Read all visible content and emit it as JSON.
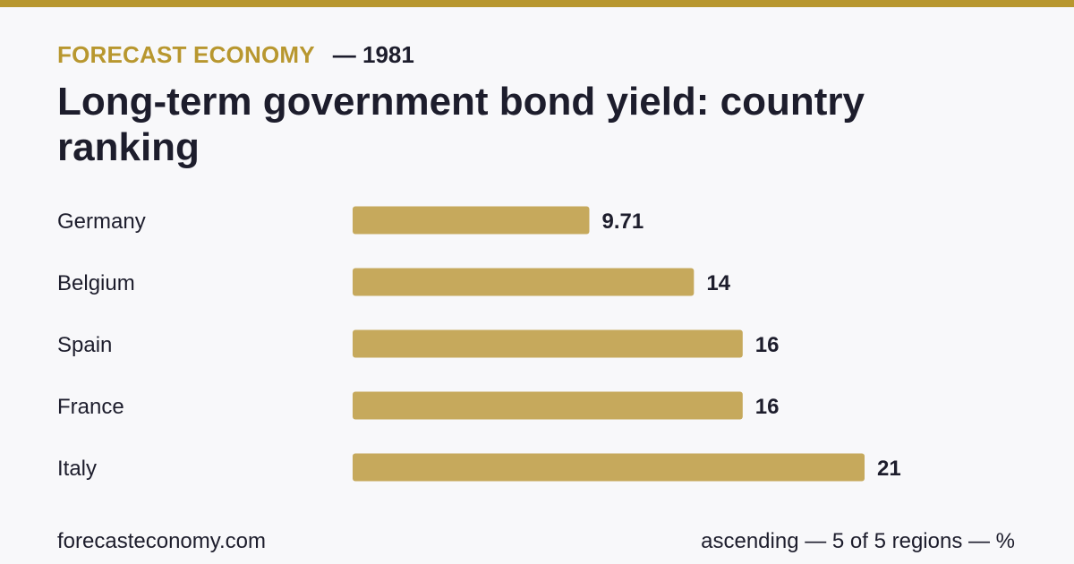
{
  "header": {
    "brand": "FORECAST ECONOMY",
    "year_text": "— 1981",
    "title": "Long-term government bond yield: country ranking"
  },
  "colors": {
    "accent": "#b8972f",
    "bar": "#c6a95c",
    "text": "#1d1d2c",
    "background": "#f8f8fa"
  },
  "chart_data": {
    "type": "bar",
    "orientation": "horizontal",
    "categories": [
      "Germany",
      "Belgium",
      "Spain",
      "France",
      "Italy"
    ],
    "values": [
      9.71,
      14,
      16,
      16,
      21
    ],
    "value_labels": [
      "9.71",
      "14",
      "16",
      "16",
      "21"
    ],
    "xlim": [
      0,
      21
    ],
    "grid": false,
    "legend": "none"
  },
  "footer": {
    "source": "forecasteconomy.com",
    "note": "ascending — 5 of 5 regions — %"
  }
}
